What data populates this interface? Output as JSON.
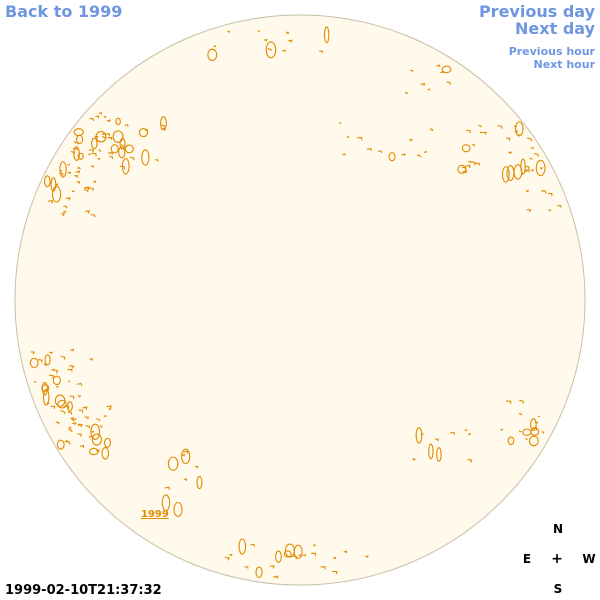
{
  "nav": {
    "back": "Back to 1999",
    "previous_day": "Previous day",
    "next_day": "Next day",
    "previous_hour": "Previous hour",
    "next_hour": "Next hour"
  },
  "timestamp": "1999-02-10T21:37:32",
  "compass": {
    "north": "N",
    "east": "E",
    "center": "+",
    "west": "W",
    "south": "S"
  },
  "year_label": "1999",
  "colors": {
    "disk_fill": "#fffaeb",
    "disk_stroke": "#c8bfa8",
    "contour": "#e08a00",
    "link": "#6f96e0"
  }
}
